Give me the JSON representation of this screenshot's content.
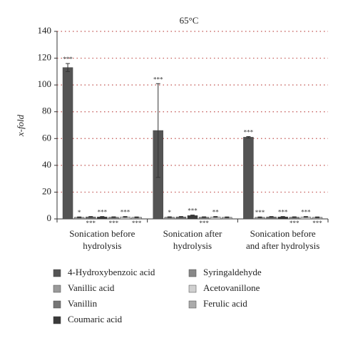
{
  "chart_data": {
    "type": "bar",
    "title": "65°C",
    "y_label": "x-fold",
    "categories": [
      "Sonication before\nhydrolysis",
      "Sonication after\nhydrolysis",
      "Sonication before\nand after hydrolysis"
    ],
    "ylim": [
      0,
      140
    ],
    "yticks": [
      0,
      20,
      40,
      60,
      80,
      100,
      120,
      140
    ],
    "grid": true,
    "series": [
      {
        "name": "4-Hydroxybenzoic acid",
        "color": "#545454",
        "values": [
          113,
          66,
          61
        ],
        "errors": [
          3,
          35,
          0.5
        ],
        "significance": [
          "***",
          "***",
          "***"
        ]
      },
      {
        "name": "Vanillic acid",
        "color": "#9a9a9a",
        "values": [
          1.2,
          1.3,
          1.2
        ],
        "errors": [
          0.3,
          0.3,
          0.3
        ],
        "significance": [
          "*",
          "*",
          "***"
        ]
      },
      {
        "name": "Vanillin",
        "color": "#767676",
        "values": [
          1.5,
          1.5,
          1.5
        ],
        "errors": [
          0.3,
          0.3,
          0.3
        ],
        "significance": [
          "***",
          null,
          null
        ]
      },
      {
        "name": "Coumaric acid",
        "color": "#3a3a3a",
        "values": [
          1.5,
          2.5,
          1.5
        ],
        "errors": [
          0.3,
          0.4,
          0.3
        ],
        "significance": [
          "***",
          "***",
          "***"
        ]
      },
      {
        "name": "Syringaldehyde",
        "color": "#888888",
        "values": [
          1.3,
          1.3,
          1.3
        ],
        "errors": [
          0.3,
          0.3,
          0.3
        ],
        "significance": [
          "***",
          "***",
          "***"
        ]
      },
      {
        "name": "Acetovanillone",
        "color": "#d0d0d0",
        "values": [
          1.5,
          1.5,
          1.5
        ],
        "errors": [
          0.3,
          0.3,
          0.3
        ],
        "significance": [
          "***",
          "**",
          "***"
        ]
      },
      {
        "name": "Ferulic acid",
        "color": "#ababab",
        "values": [
          1.2,
          1.2,
          1.2
        ],
        "errors": [
          0.3,
          0.3,
          0.3
        ],
        "significance": [
          "***",
          null,
          "***"
        ]
      }
    ]
  }
}
